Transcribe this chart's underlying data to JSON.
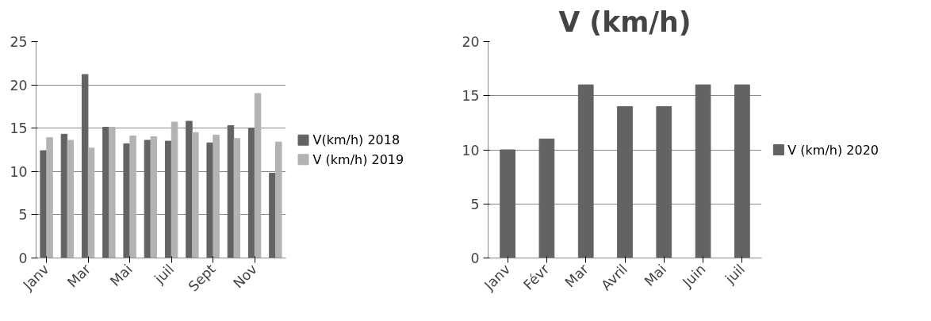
{
  "chart_data": [
    {
      "type": "bar",
      "categories": [
        "Janv",
        null,
        "Mar",
        null,
        "Mai",
        null,
        "juil",
        null,
        "Sept",
        null,
        "Nov",
        null
      ],
      "ylim": [
        0,
        25
      ],
      "yticks": [
        0,
        5,
        10,
        15,
        20,
        25
      ],
      "grid": "y",
      "legend": "right",
      "series": [
        {
          "name": "V(km/h) 2018",
          "color": "#636363",
          "values": [
            12.4,
            14.3,
            21.2,
            15.1,
            13.2,
            13.6,
            13.5,
            15.8,
            13.3,
            15.3,
            15.0,
            9.8
          ]
        },
        {
          "name": "V (km/h) 2019",
          "color": "#b3b3b3",
          "values": [
            13.9,
            13.6,
            12.7,
            15.1,
            14.1,
            14.0,
            15.7,
            14.5,
            14.2,
            13.8,
            19.0,
            13.4
          ]
        }
      ]
    },
    {
      "type": "bar",
      "title": "V (km/h)",
      "categories": [
        "Janv",
        "Févr",
        "Mar",
        "Avril",
        "Mai",
        "Juin",
        "juil"
      ],
      "ylim": [
        0,
        20
      ],
      "yticks": [
        0,
        5,
        10,
        15,
        20
      ],
      "grid": "y",
      "legend": "right",
      "series": [
        {
          "name": "V (km/h) 2020",
          "color": "#636363",
          "values": [
            10,
            11,
            16,
            14,
            14,
            16,
            16
          ]
        }
      ]
    }
  ]
}
